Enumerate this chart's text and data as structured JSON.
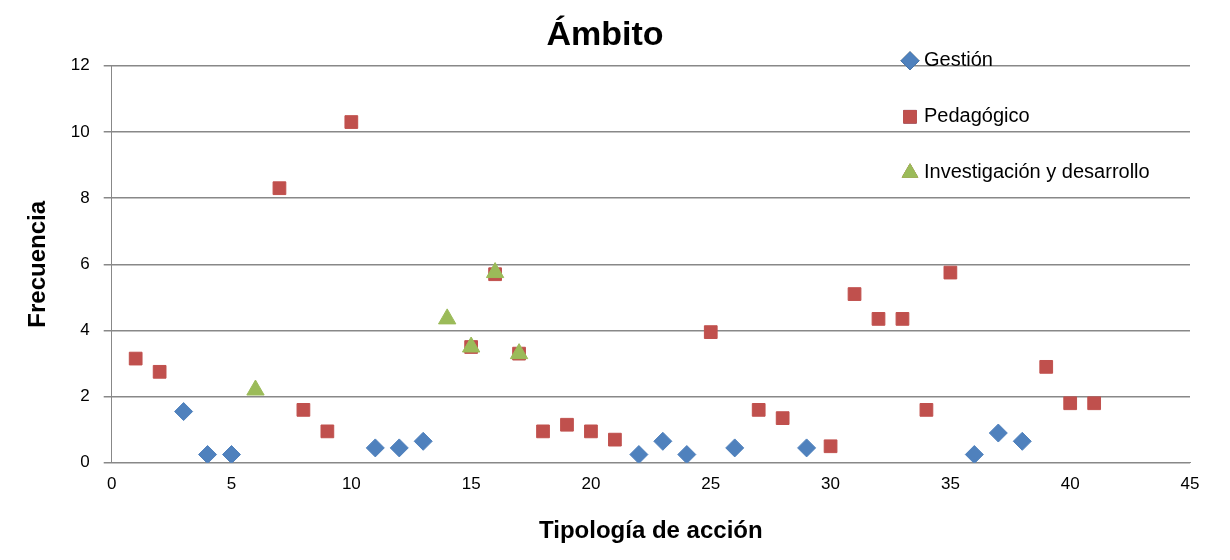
{
  "chart_data": {
    "type": "scatter",
    "title": "Ámbito",
    "xlabel": "Tipología de acción",
    "ylabel": "Frecuencia",
    "xlim": [
      0,
      45
    ],
    "xticks": [
      0,
      5,
      10,
      15,
      20,
      25,
      30,
      35,
      40,
      45
    ],
    "ylim": [
      0,
      12
    ],
    "yticks": [
      0,
      2,
      4,
      6,
      8,
      10,
      12
    ],
    "grid": "y",
    "legend": "top right",
    "series": [
      {
        "name": "Gestión",
        "color": "#4f81bd",
        "marker": "diamond",
        "x": [
          3,
          4,
          5,
          11,
          12,
          13,
          22,
          23,
          24,
          26,
          29,
          36,
          37,
          38
        ],
        "values": [
          1.55,
          0.25,
          0.25,
          0.45,
          0.45,
          0.65,
          0.25,
          0.65,
          0.25,
          0.45,
          0.45,
          0.25,
          0.9,
          0.65
        ]
      },
      {
        "name": "Pedagógico",
        "color": "#c0504d",
        "marker": "square",
        "x": [
          1,
          2,
          7,
          8,
          9,
          10,
          15,
          16,
          17,
          18,
          19,
          20,
          21,
          25,
          27,
          28,
          30,
          31,
          32,
          33,
          34,
          35,
          39,
          40,
          41
        ],
        "values": [
          3.15,
          2.75,
          8.3,
          1.6,
          0.95,
          10.3,
          3.5,
          5.7,
          3.3,
          0.95,
          1.15,
          0.95,
          0.7,
          3.95,
          1.6,
          1.35,
          0.5,
          5.1,
          4.35,
          4.35,
          1.6,
          5.75,
          2.9,
          1.8,
          1.8
        ]
      },
      {
        "name": "Investigación y desarrollo",
        "color": "#9bbb59",
        "marker": "triangle",
        "x": [
          6,
          14,
          15,
          16,
          17
        ],
        "values": [
          2.2,
          4.35,
          3.5,
          5.75,
          3.3
        ]
      }
    ]
  }
}
